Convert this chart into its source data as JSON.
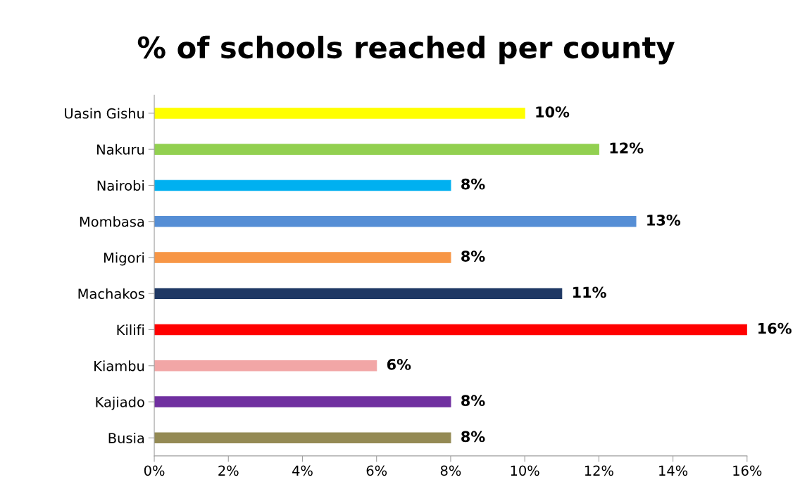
{
  "chart_data": {
    "type": "bar",
    "orientation": "horizontal",
    "title": "% of schools reached per county",
    "categories": [
      "Uasin Gishu",
      "Nakuru",
      "Nairobi",
      "Mombasa",
      "Migori",
      "Machakos",
      "Kilifi",
      "Kiambu",
      "Kajiado",
      "Busia"
    ],
    "values": [
      10,
      12,
      8,
      13,
      8,
      11,
      16,
      6,
      8,
      8
    ],
    "colors": [
      "#ffff00",
      "#92d050",
      "#00b0f0",
      "#558ed5",
      "#f79646",
      "#1f3864",
      "#ff0000",
      "#f2a6a6",
      "#7030a0",
      "#948a54"
    ],
    "value_labels": [
      "10%",
      "12%",
      "8%",
      "13%",
      "8%",
      "11%",
      "16%",
      "6%",
      "8%",
      "8%"
    ],
    "xlim": [
      0,
      16
    ],
    "xticks": [
      {
        "value": 0,
        "label": "0%"
      },
      {
        "value": 2,
        "label": "2%"
      },
      {
        "value": 4,
        "label": "4%"
      },
      {
        "value": 6,
        "label": "6%"
      },
      {
        "value": 8,
        "label": "8%"
      },
      {
        "value": 10,
        "label": "10%"
      },
      {
        "value": 12,
        "label": "12%"
      },
      {
        "value": 14,
        "label": "14%"
      },
      {
        "value": 16,
        "label": "16%"
      }
    ],
    "grid": false
  }
}
